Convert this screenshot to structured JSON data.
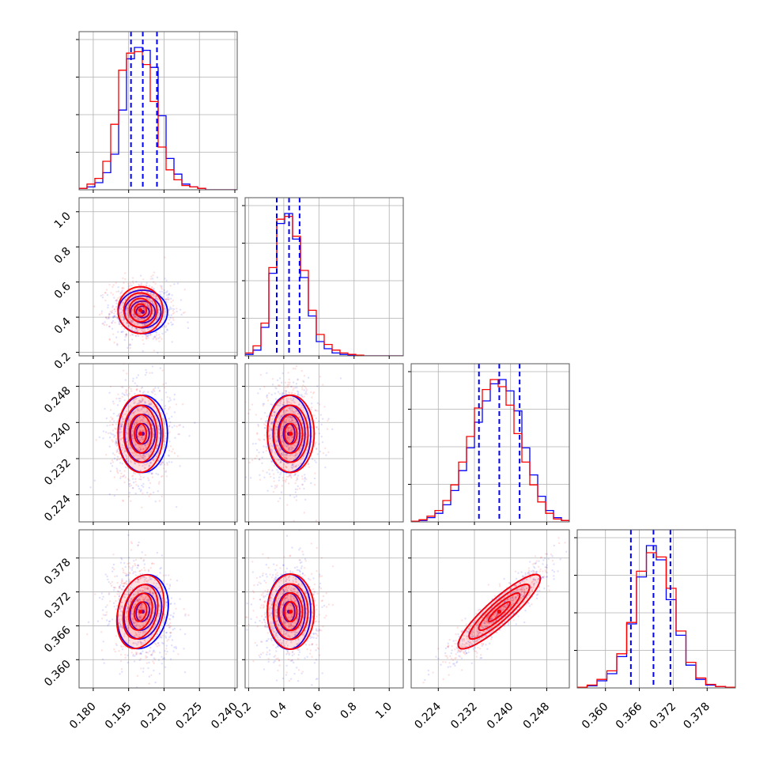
{
  "figure": {
    "type": "corner-plot",
    "colors": {
      "series_a": "#0000ff",
      "series_b": "#ff0000",
      "grid": "#b0b0b0",
      "frame": "#555555"
    }
  },
  "chart_data": {
    "type": "corner",
    "parameters": [
      {
        "range": [
          0.174,
          0.241
        ],
        "ticks": [
          0.18,
          0.195,
          0.21,
          0.225,
          0.24
        ],
        "tick_labels": [
          "0.180",
          "0.195",
          "0.210",
          "0.225",
          "0.240"
        ]
      },
      {
        "range": [
          0.18,
          1.08
        ],
        "ticks": [
          0.2,
          0.4,
          0.6,
          0.8,
          1.0
        ],
        "tick_labels": [
          "0.2",
          "0.4",
          "0.6",
          "0.8",
          "1.0"
        ]
      },
      {
        "range": [
          0.218,
          0.253
        ],
        "ticks": [
          0.224,
          0.232,
          0.24,
          0.248
        ],
        "tick_labels": [
          "0.224",
          "0.232",
          "0.240",
          "0.248"
        ]
      },
      {
        "range": [
          0.355,
          0.383
        ],
        "ticks": [
          0.36,
          0.366,
          0.372,
          0.378
        ],
        "tick_labels": [
          "0.360",
          "0.366",
          "0.372",
          "0.378"
        ]
      }
    ],
    "series": [
      {
        "color": "#0000ff",
        "quantiles": [
          [
            0.196,
            0.201,
            0.207
          ],
          [
            0.36,
            0.43,
            0.49
          ],
          [
            0.233,
            0.2375,
            0.242
          ],
          [
            0.3645,
            0.3685,
            0.3715
          ]
        ],
        "histograms": [
          [
            0.01,
            0.02,
            0.05,
            0.12,
            0.25,
            0.56,
            0.92,
            1.0,
            0.98,
            0.86,
            0.52,
            0.22,
            0.11,
            0.04,
            0.02,
            0.01,
            0,
            0,
            0,
            0
          ],
          [
            0.01,
            0.04,
            0.2,
            0.58,
            0.93,
            1.0,
            0.82,
            0.55,
            0.28,
            0.1,
            0.05,
            0.02,
            0.01,
            0.005,
            0,
            0,
            0,
            0,
            0,
            0
          ],
          [
            0.005,
            0.01,
            0.03,
            0.06,
            0.12,
            0.22,
            0.36,
            0.52,
            0.7,
            0.85,
            0.97,
            1.0,
            0.92,
            0.78,
            0.52,
            0.33,
            0.18,
            0.08,
            0.03,
            0.01
          ],
          [
            0.005,
            0.015,
            0.05,
            0.1,
            0.22,
            0.45,
            0.78,
            1.0,
            0.9,
            0.62,
            0.37,
            0.16,
            0.06,
            0.02,
            0.01,
            0.005
          ]
        ],
        "centers": [
          [
            0.201,
            0.43
          ],
          [
            0.201,
            0.2375
          ],
          [
            0.201,
            0.3685
          ],
          [
            0.43,
            0.2375
          ],
          [
            0.43,
            0.3685
          ],
          [
            0.2375,
            0.3685
          ]
        ]
      },
      {
        "color": "#ff0000",
        "quantiles": [
          [
            0.196,
            0.2,
            0.206
          ],
          [
            0.37,
            0.44,
            0.51
          ],
          [
            0.233,
            0.2375,
            0.242
          ],
          [
            0.3645,
            0.3685,
            0.3715
          ]
        ],
        "histograms": [
          [
            0.01,
            0.04,
            0.08,
            0.2,
            0.46,
            0.84,
            0.96,
            0.97,
            0.88,
            0.62,
            0.3,
            0.14,
            0.07,
            0.03,
            0.02,
            0.01,
            0,
            0,
            0,
            0
          ],
          [
            0.02,
            0.07,
            0.23,
            0.62,
            0.96,
            0.98,
            0.84,
            0.6,
            0.32,
            0.15,
            0.08,
            0.04,
            0.02,
            0.01,
            0.005,
            0,
            0,
            0,
            0,
            0
          ],
          [
            0.005,
            0.015,
            0.04,
            0.08,
            0.15,
            0.26,
            0.42,
            0.6,
            0.8,
            0.93,
            1.0,
            0.95,
            0.82,
            0.62,
            0.42,
            0.26,
            0.14,
            0.06,
            0.02,
            0.01
          ],
          [
            0.005,
            0.02,
            0.06,
            0.12,
            0.24,
            0.46,
            0.82,
            0.95,
            0.92,
            0.7,
            0.4,
            0.18,
            0.07,
            0.025,
            0.01,
            0.005
          ]
        ],
        "centers": [
          [
            0.2,
            0.44
          ],
          [
            0.2,
            0.2375
          ],
          [
            0.2,
            0.3685
          ],
          [
            0.44,
            0.2375
          ],
          [
            0.44,
            0.3685
          ],
          [
            0.2375,
            0.3685
          ]
        ]
      }
    ],
    "correlations": [
      0.0,
      0.0,
      0.0,
      -0.15,
      0.0,
      0.92
    ],
    "grid": true
  }
}
